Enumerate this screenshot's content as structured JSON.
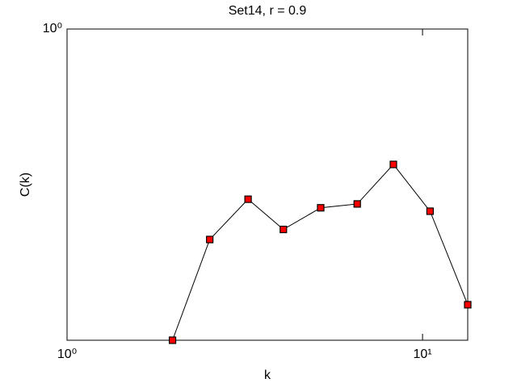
{
  "chart_data": {
    "type": "line",
    "title": "Set14, r = 0.9",
    "x_label": "k",
    "y_label": "C(k)",
    "log_x": true,
    "log_y": true,
    "xlim": [
      1,
      13.4
    ],
    "ylim": [
      0.195,
      1
    ],
    "xticks": [
      {
        "value": 1,
        "label": "10⁰"
      },
      {
        "value": 10,
        "label": "10¹"
      }
    ],
    "yticks": [
      {
        "value": 1,
        "label": "10⁰"
      }
    ],
    "series": [
      {
        "color": "#ff0000",
        "line_color": "#000000",
        "x": [
          1.98,
          2.52,
          3.23,
          4.06,
          5.17,
          6.55,
          8.28,
          10.5,
          13.4
        ],
        "values": [
          0.195,
          0.331,
          0.409,
          0.349,
          0.391,
          0.399,
          0.491,
          0.384,
          0.235
        ]
      }
    ]
  }
}
